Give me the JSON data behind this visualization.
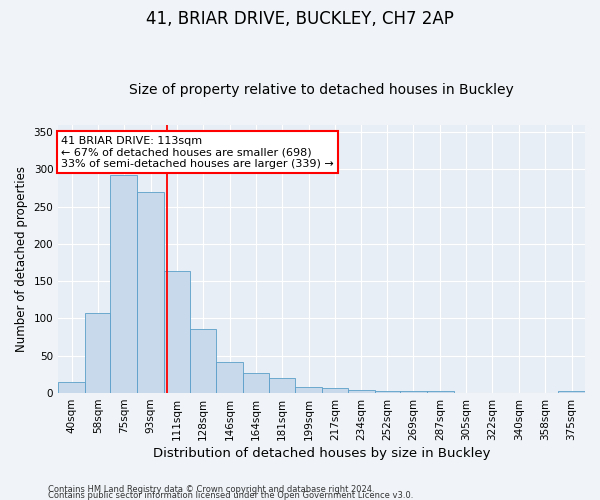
{
  "title1": "41, BRIAR DRIVE, BUCKLEY, CH7 2AP",
  "title2": "Size of property relative to detached houses in Buckley",
  "xlabel": "Distribution of detached houses by size in Buckley",
  "ylabel": "Number of detached properties",
  "footnote1": "Contains HM Land Registry data © Crown copyright and database right 2024.",
  "footnote2": "Contains public sector information licensed under the Open Government Licence v3.0.",
  "annotation_line1": "41 BRIAR DRIVE: 113sqm",
  "annotation_line2": "← 67% of detached houses are smaller (698)",
  "annotation_line3": "33% of semi-detached houses are larger (339) →",
  "bar_color": "#c8d9ec",
  "bar_edge_color": "#5a9ec8",
  "redline_x": 113,
  "bin_edges": [
    40,
    58,
    75,
    93,
    111,
    128,
    146,
    164,
    181,
    199,
    217,
    234,
    252,
    269,
    287,
    305,
    322,
    340,
    358,
    375,
    393
  ],
  "bar_heights": [
    15,
    108,
    293,
    269,
    163,
    86,
    41,
    27,
    20,
    8,
    7,
    4,
    3,
    3,
    3,
    0,
    0,
    0,
    0,
    3
  ],
  "ylim": [
    0,
    360
  ],
  "yticks": [
    0,
    50,
    100,
    150,
    200,
    250,
    300,
    350
  ],
  "fig_bg_color": "#f0f4f8",
  "plot_bg_color": "#e8eef5",
  "grid_color": "#ffffff",
  "title1_fontsize": 12,
  "title2_fontsize": 10,
  "xlabel_fontsize": 9.5,
  "ylabel_fontsize": 8.5,
  "tick_fontsize": 7.5,
  "footnote_fontsize": 6.0
}
